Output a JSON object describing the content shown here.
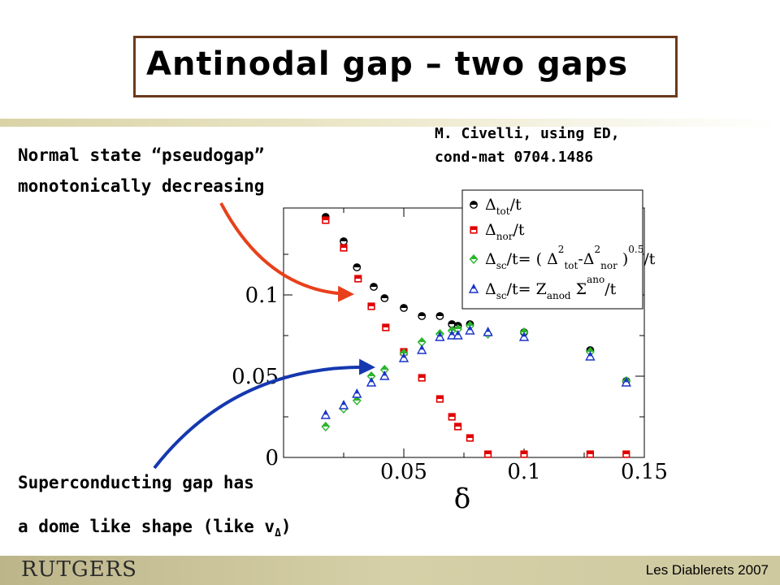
{
  "slide": {
    "title": "Antinodal gap – two gaps",
    "credit_line1": "M. Civelli, using ED,",
    "credit_line2": "cond-mat 0704.1486",
    "annotation_top_line1": "Normal state “pseudogap”",
    "annotation_top_line2": "monotonically decreasing",
    "annotation_bottom_line1": "Superconducting gap has",
    "annotation_bottom_line2_prefix": "a dome like shape (like v",
    "annotation_bottom_line2_sub": "Δ",
    "annotation_bottom_line2_suffix": ")",
    "footer_logo": "RUTGERS",
    "footer_text": "Les Diablerets 2007",
    "arrow_colors": {
      "top": "#e8401a",
      "bottom": "#1538b0"
    }
  },
  "chart_data": {
    "type": "scatter",
    "xlabel": "δ",
    "ylabel": "",
    "xlim": [
      0.0,
      0.15
    ],
    "ylim": [
      0.0,
      0.14
    ],
    "x_ticks": [
      {
        "value": 0.05,
        "label": "0.05"
      },
      {
        "value": 0.1,
        "label": "0.1"
      },
      {
        "value": 0.15,
        "label": "0.15"
      }
    ],
    "y_ticks": [
      {
        "value": 0.0,
        "label": "0"
      },
      {
        "value": 0.05,
        "label": "0.05"
      },
      {
        "value": 0.1,
        "label": "0.1"
      }
    ],
    "grid": false,
    "legend_position": "top-right",
    "series": [
      {
        "key": "tot",
        "legend": {
          "main": "Δ",
          "sub": "tot",
          "rest": "/t"
        },
        "marker": "circle-half",
        "color": "#000000",
        "x": [
          0.0175,
          0.025,
          0.0305,
          0.0375,
          0.042,
          0.05,
          0.0575,
          0.065,
          0.07,
          0.0725,
          0.0775,
          0.1,
          0.1275,
          0.1425
        ],
        "y": [
          0.148,
          0.133,
          0.117,
          0.105,
          0.098,
          0.092,
          0.087,
          0.087,
          0.082,
          0.081,
          0.082,
          0.077,
          0.066,
          0.047
        ]
      },
      {
        "key": "nor",
        "legend": {
          "main": "Δ",
          "sub": "nor",
          "rest": "/t"
        },
        "marker": "square",
        "color": "#e00000",
        "x": [
          0.0175,
          0.025,
          0.031,
          0.0365,
          0.0425,
          0.05,
          0.0575,
          0.065,
          0.07,
          0.0725,
          0.0775,
          0.085,
          0.1,
          0.1275,
          0.1425
        ],
        "y": [
          0.146,
          0.129,
          0.11,
          0.093,
          0.08,
          0.065,
          0.049,
          0.036,
          0.025,
          0.019,
          0.012,
          0.002,
          0.002,
          0.002,
          0.002
        ]
      },
      {
        "key": "sc1",
        "legend": {
          "main": "Δ",
          "sub": "sc",
          "rest": "/t= ( Δ",
          "sub2": "tot",
          "sup2": "2",
          "mid": "-Δ",
          "sub3": "nor",
          "sup3": "2",
          "tail": " )",
          "sup4": "0.5",
          "end": "/t"
        },
        "marker": "diamond",
        "color": "#2bb52b",
        "x": [
          0.0175,
          0.025,
          0.0305,
          0.0365,
          0.042,
          0.05,
          0.0575,
          0.065,
          0.07,
          0.0725,
          0.0775,
          0.085,
          0.1,
          0.1275,
          0.1425
        ],
        "y": [
          0.019,
          0.03,
          0.035,
          0.05,
          0.054,
          0.064,
          0.071,
          0.076,
          0.078,
          0.079,
          0.081,
          0.076,
          0.077,
          0.065,
          0.047
        ]
      },
      {
        "key": "sc2",
        "legend": {
          "main": "Δ",
          "sub": "sc",
          "rest": "/t= Z",
          "sub2": "anod",
          "mid": " Σ",
          "sup2": "ano",
          "end": "/t"
        },
        "marker": "triangle",
        "color": "#1a35c8",
        "x": [
          0.0175,
          0.025,
          0.0305,
          0.0365,
          0.042,
          0.05,
          0.0575,
          0.065,
          0.07,
          0.0725,
          0.0775,
          0.085,
          0.1,
          0.1275,
          0.1425
        ],
        "y": [
          0.026,
          0.032,
          0.039,
          0.046,
          0.05,
          0.061,
          0.066,
          0.074,
          0.075,
          0.075,
          0.078,
          0.077,
          0.074,
          0.062,
          0.046
        ]
      }
    ]
  }
}
